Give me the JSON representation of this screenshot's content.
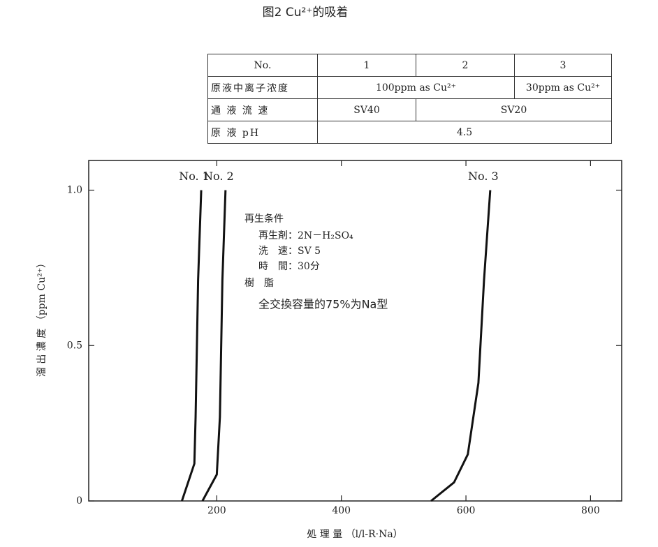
{
  "table": {
    "header": [
      "No.",
      "1",
      "2",
      "3"
    ],
    "rows": [
      [
        "原液中离子浓度",
        "100ppm as Cu²⁺",
        "30ppm as Cu²⁺"
      ],
      [
        "通 液 流 速",
        "SV40",
        "SV20"
      ],
      [
        "原 液 pH",
        "4.5"
      ]
    ]
  },
  "chart_data": {
    "type": "line",
    "title": "图2  Cu²⁺的吸着",
    "x_label": "処 理 量 （l/l-R·Na）",
    "y_label": "溜 出 濃 度 （ppm Cu²⁺）",
    "series": [
      {
        "name": "No. 1",
        "color": "#111",
        "x": [
          144,
          164,
          166,
          170,
          175
        ],
        "values": [
          0,
          0.12,
          0.27,
          0.71,
          1.0
        ]
      },
      {
        "name": "No. 2",
        "color": "#111",
        "x": [
          177,
          200,
          205,
          209,
          214
        ],
        "values": [
          0,
          0.085,
          0.27,
          0.71,
          1.0
        ]
      },
      {
        "name": "No. 3",
        "color": "#111",
        "x": [
          544,
          581,
          603,
          620,
          629,
          639
        ],
        "values": [
          0,
          0.06,
          0.15,
          0.38,
          0.71,
          1.0
        ]
      }
    ],
    "annotations": [
      "再生条件",
      "再生剤：2N－H₂SO₄",
      "洗　速：SV 5",
      "時　間：30分",
      "樹　脂",
      "全交換容量的75%为Na型"
    ],
    "xlim": [
      0,
      850
    ],
    "ylim": [
      0,
      1.1
    ],
    "xticks": [
      200,
      400,
      600,
      800
    ],
    "yticks": [
      0,
      {
        "value": 0.5,
        "label": "0.5"
      },
      {
        "value": 1,
        "label": "1.0"
      }
    ],
    "grid": false
  }
}
